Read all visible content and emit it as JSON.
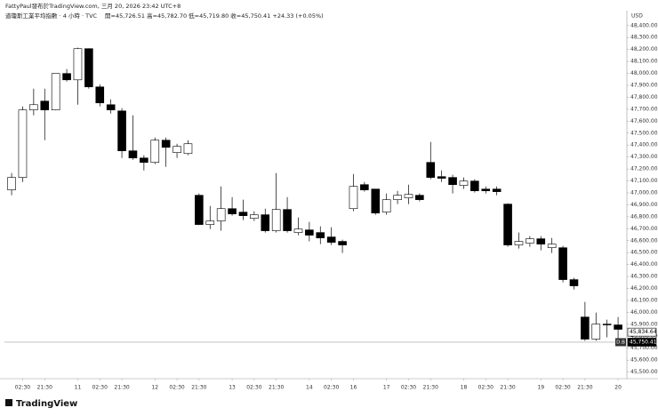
{
  "header": {
    "attribution": "FattyPaul發布於TradingView.com, 三月 20, 2026 23:42 UTC+8",
    "symbol": "道瓊斯工業平均指數 · 4 小時 · TVC",
    "ohlc": "開=45,726.51 高=45,782.70 低=45,719.80 收=45,750.41 +24.33 (+0.05%)"
  },
  "chart_data": {
    "type": "candlestick",
    "currency": "USD",
    "open": [
      47025,
      47129,
      47694,
      47768,
      47694,
      47999,
      47946,
      48207,
      47887,
      47738,
      47686,
      47352,
      47292,
      47255,
      47441,
      47337,
      47329,
      46980,
      46735,
      46765,
      46868,
      46839,
      46787,
      46817,
      46683,
      46861,
      46668,
      46690,
      46668,
      46631,
      46594,
      46868,
      47069,
      47032,
      46839,
      46943,
      46958,
      46980,
      47255,
      47136,
      47129,
      47062,
      47099,
      47032,
      47032,
      46906,
      46564,
      46579,
      46616,
      46541,
      46541,
      46274,
      45961,
      45776,
      45902,
      45895
    ],
    "high": [
      47166,
      47723,
      47872,
      47872,
      48000,
      48036,
      48215,
      48210,
      47909,
      47783,
      47709,
      47649,
      47315,
      47463,
      47463,
      47411,
      47441,
      46995,
      46891,
      47054,
      46965,
      46943,
      46846,
      46868,
      47166,
      46965,
      46794,
      46757,
      46720,
      46712,
      46608,
      47158,
      47091,
      47032,
      46995,
      47017,
      47069,
      46995,
      47426,
      47188,
      47151,
      47129,
      47114,
      47054,
      47054,
      46913,
      46668,
      46638,
      46638,
      46623,
      46556,
      46289,
      46088,
      45998,
      45939,
      45961
    ],
    "low": [
      46980,
      47091,
      47649,
      47441,
      47690,
      47932,
      47738,
      47872,
      47723,
      47664,
      47292,
      47277,
      47188,
      47240,
      47218,
      47292,
      47315,
      46730,
      46697,
      46683,
      46809,
      46772,
      46765,
      46668,
      46668,
      46668,
      46646,
      46594,
      46571,
      46564,
      46497,
      46846,
      47010,
      46817,
      46817,
      46906,
      46906,
      46928,
      47114,
      47091,
      46995,
      47032,
      47003,
      46995,
      46980,
      46549,
      46534,
      46549,
      46519,
      46497,
      46251,
      46192,
      45761,
      45761,
      45791,
      45761
    ],
    "close": [
      47129,
      47694,
      47738,
      47694,
      47999,
      47946,
      48207,
      47887,
      47753,
      47694,
      47352,
      47292,
      47255,
      47441,
      47381,
      47389,
      47411,
      46735,
      46765,
      46868,
      46824,
      46809,
      46817,
      46683,
      46861,
      46683,
      46697,
      46646,
      46623,
      46586,
      46564,
      47054,
      47025,
      46831,
      46943,
      46980,
      46987,
      46943,
      47129,
      47122,
      47069,
      47099,
      47017,
      47017,
      47010,
      46564,
      46594,
      46616,
      46571,
      46571,
      46274,
      46222,
      45776,
      45902,
      45895,
      45858
    ],
    "up_color": "#ffffff",
    "down_color": "#000000",
    "xlim": [
      -0.65,
      55.8
    ],
    "xticks": [
      {
        "value": 1,
        "label": "02:30"
      },
      {
        "value": 3,
        "label": "21:30"
      },
      {
        "value": 6,
        "label": "11"
      },
      {
        "value": 8,
        "label": "02:30"
      },
      {
        "value": 10,
        "label": "21:30"
      },
      {
        "value": 13,
        "label": "12"
      },
      {
        "value": 15,
        "label": "02:30"
      },
      {
        "value": 17,
        "label": "21:30"
      },
      {
        "value": 20,
        "label": "13"
      },
      {
        "value": 22,
        "label": "02:30"
      },
      {
        "value": 24,
        "label": "21:30"
      },
      {
        "value": 27,
        "label": "14"
      },
      {
        "value": 29,
        "label": "02:30"
      },
      {
        "value": 31,
        "label": "16"
      },
      {
        "value": 34,
        "label": "17"
      },
      {
        "value": 36,
        "label": "02:30"
      },
      {
        "value": 38,
        "label": "21:30"
      },
      {
        "value": 41,
        "label": "18"
      },
      {
        "value": 43,
        "label": "02:30"
      },
      {
        "value": 45,
        "label": "21:30"
      },
      {
        "value": 48,
        "label": "19"
      },
      {
        "value": 50,
        "label": "02:30"
      },
      {
        "value": 52,
        "label": "21:30"
      },
      {
        "value": 55,
        "label": "20"
      }
    ],
    "ylim": [
      45460,
      48510
    ],
    "yticks": [
      {
        "value": 45500,
        "label": "45,500.00"
      },
      {
        "value": 45600,
        "label": "45,600.00"
      },
      {
        "value": 45700,
        "label": "45,700.00"
      },
      {
        "value": 45800,
        "label": "45,800.00"
      },
      {
        "value": 45900,
        "label": "45,900.00"
      },
      {
        "value": 46000,
        "label": "46,000.00"
      },
      {
        "value": 46100,
        "label": "46,100.00"
      },
      {
        "value": 46200,
        "label": "46,200.00"
      },
      {
        "value": 46300,
        "label": "46,300.00"
      },
      {
        "value": 46400,
        "label": "46,400.00"
      },
      {
        "value": 46500,
        "label": "46,500.00"
      },
      {
        "value": 46600,
        "label": "46,600.00"
      },
      {
        "value": 46700,
        "label": "46,700.00"
      },
      {
        "value": 46800,
        "label": "46,800.00"
      },
      {
        "value": 46900,
        "label": "46,900.00"
      },
      {
        "value": 47000,
        "label": "47,000.00"
      },
      {
        "value": 47100,
        "label": "47,100.00"
      },
      {
        "value": 47200,
        "label": "47,200.00"
      },
      {
        "value": 47300,
        "label": "47,300.00"
      },
      {
        "value": 47400,
        "label": "47,400.00"
      },
      {
        "value": 47500,
        "label": "47,500.00"
      },
      {
        "value": 47600,
        "label": "47,600.00"
      },
      {
        "value": 47700,
        "label": "47,700.00"
      },
      {
        "value": 47800,
        "label": "47,800.00"
      },
      {
        "value": 47900,
        "label": "47,900.00"
      },
      {
        "value": 48000,
        "label": "48,000.00"
      },
      {
        "value": 48100,
        "label": "48,100.00"
      },
      {
        "value": 48200,
        "label": "48,200.00"
      },
      {
        "value": 48300,
        "label": "48,300.00"
      },
      {
        "value": 48400,
        "label": "48,400.00"
      }
    ],
    "price_tags": [
      {
        "value": 45834.64,
        "label": "45,834.64"
      },
      {
        "value": 45750.41,
        "label": "45,750.41"
      }
    ],
    "tag_name": "D.B"
  },
  "footer": {
    "logo": "TradingView"
  }
}
